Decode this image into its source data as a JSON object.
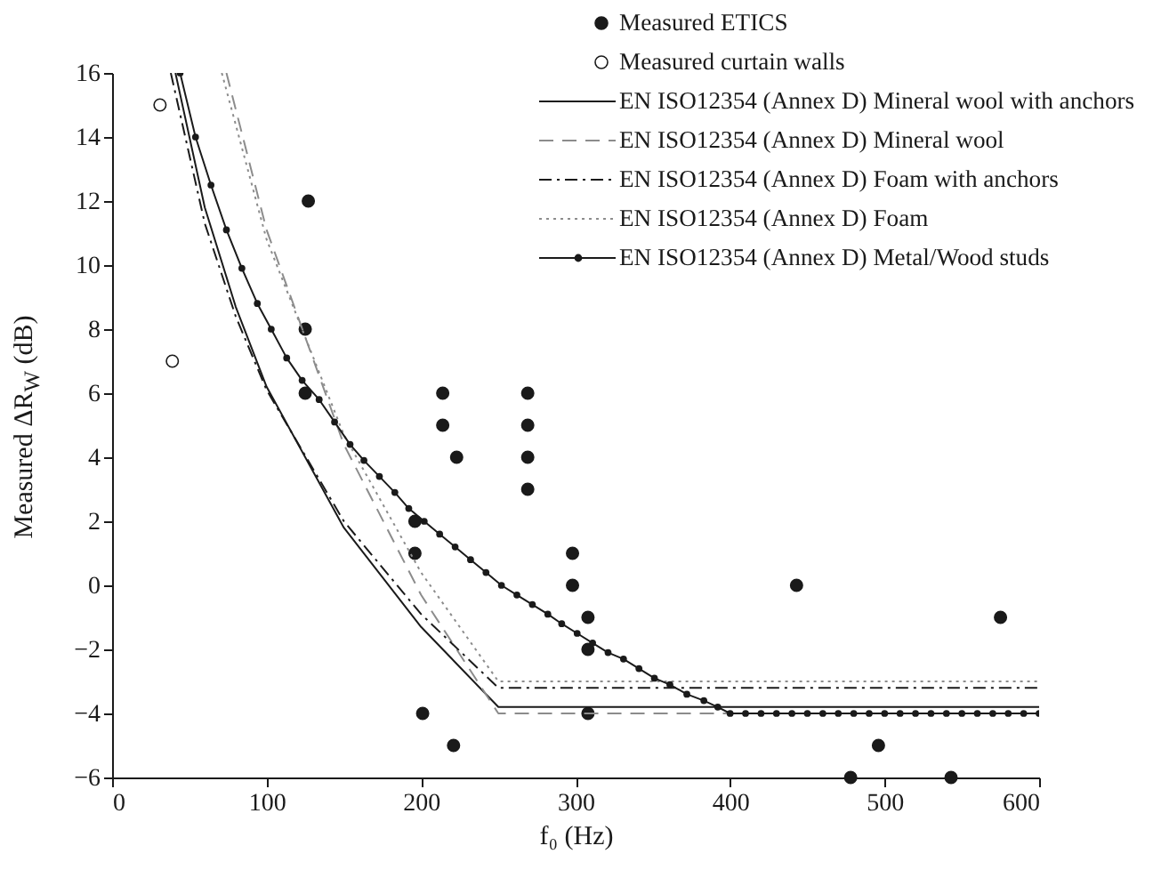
{
  "chart_data": {
    "type": "scatter",
    "xlabel": "f₀ (Hz)",
    "ylabel": "Measured  ΔR$_{W}$ (dB)",
    "xlim": [
      0,
      600
    ],
    "xticks": [
      0,
      100,
      200,
      300,
      400,
      500,
      600
    ],
    "ylim": [
      -6,
      16
    ],
    "yticks": [
      -6,
      -4,
      -2,
      0,
      2,
      4,
      6,
      8,
      10,
      12,
      14,
      16
    ],
    "grid": false,
    "legend": "top right",
    "series": [
      {
        "name": "Measured ETICS",
        "marker": "circle",
        "color": "#1a1a1a",
        "x": [
          127,
          125,
          125,
          214,
          214,
          223,
          269,
          269,
          269,
          269,
          196,
          196,
          298,
          298,
          308,
          308,
          201,
          221,
          308,
          443,
          575,
          496,
          478,
          543
        ],
        "values": [
          12,
          8,
          6,
          6,
          5,
          4,
          6,
          5,
          4,
          3,
          2,
          1,
          1,
          0,
          -1,
          -2,
          -4,
          -5,
          -4,
          0,
          -1,
          -5,
          -6,
          -6
        ]
      },
      {
        "name": "Measured curtain walls",
        "marker": "circle",
        "color": "#ffffff",
        "x": [
          31,
          39
        ],
        "values": [
          15,
          7
        ]
      },
      {
        "name": "EN ISO12354 (Annex D) Mineral wool with anchors",
        "type": "line",
        "line_style": "solid",
        "marker": "none",
        "color": "#1a1a1a",
        "x": [
          41,
          60,
          80,
          100,
          150,
          200,
          250,
          600
        ],
        "values": [
          16,
          11.8,
          8.7,
          6.2,
          1.8,
          -1.3,
          -3.8,
          -3.8
        ]
      },
      {
        "name": "EN ISO12354 (Annex D) Mineral wool",
        "type": "line",
        "line_style": "dashed",
        "marker": "none",
        "color": "#8c8c8c",
        "x": [
          74,
          100,
          150,
          200,
          250,
          600
        ],
        "values": [
          16,
          11.1,
          4.4,
          -0.3,
          -4,
          -4
        ]
      },
      {
        "name": "EN ISO12354 (Annex D) Foam with anchors",
        "type": "line",
        "line_style": "dashdot",
        "marker": "none",
        "color": "#1a1a1a",
        "x": [
          38,
          60,
          80,
          100,
          150,
          200,
          250,
          600
        ],
        "values": [
          16,
          11.3,
          8.4,
          6.1,
          2.0,
          -0.9,
          -3.2,
          -3.2
        ]
      },
      {
        "name": "EN ISO12354 (Annex D) Foam",
        "type": "line",
        "line_style": "dotted",
        "marker": "none",
        "color": "#8c8c8c",
        "x": [
          71,
          100,
          150,
          200,
          250,
          600
        ],
        "values": [
          16,
          10.8,
          4.7,
          0.4,
          -3,
          -3
        ]
      },
      {
        "name": "EN ISO12354 (Annex D) Metal/Wood studs",
        "type": "line",
        "line_style": "solid",
        "marker": "circle",
        "color": "#1a1a1a",
        "x": [
          44,
          54,
          64,
          74,
          84,
          94,
          103,
          113,
          123,
          134,
          144,
          154,
          163,
          173,
          183,
          192,
          202,
          212,
          222,
          232,
          242,
          252,
          262,
          272,
          282,
          291,
          301,
          311,
          321,
          331,
          341,
          351,
          361,
          372,
          383,
          392,
          400,
          410,
          420,
          430,
          440,
          450,
          460,
          470,
          480,
          490,
          500,
          510,
          520,
          530,
          540,
          550,
          560,
          570,
          580,
          590,
          600
        ],
        "values": [
          16,
          14,
          12.5,
          11.1,
          9.9,
          8.8,
          8.0,
          7.1,
          6.4,
          5.8,
          5.1,
          4.4,
          3.9,
          3.4,
          2.9,
          2.4,
          2.0,
          1.6,
          1.2,
          0.8,
          0.4,
          0.0,
          -0.3,
          -0.6,
          -0.9,
          -1.2,
          -1.5,
          -1.8,
          -2.1,
          -2.3,
          -2.6,
          -2.9,
          -3.1,
          -3.4,
          -3.6,
          -3.8,
          -4,
          -4,
          -4,
          -4,
          -4,
          -4,
          -4,
          -4,
          -4,
          -4,
          -4,
          -4,
          -4,
          -4,
          -4,
          -4,
          -4,
          -4,
          -4,
          -4,
          -4
        ]
      }
    ]
  }
}
